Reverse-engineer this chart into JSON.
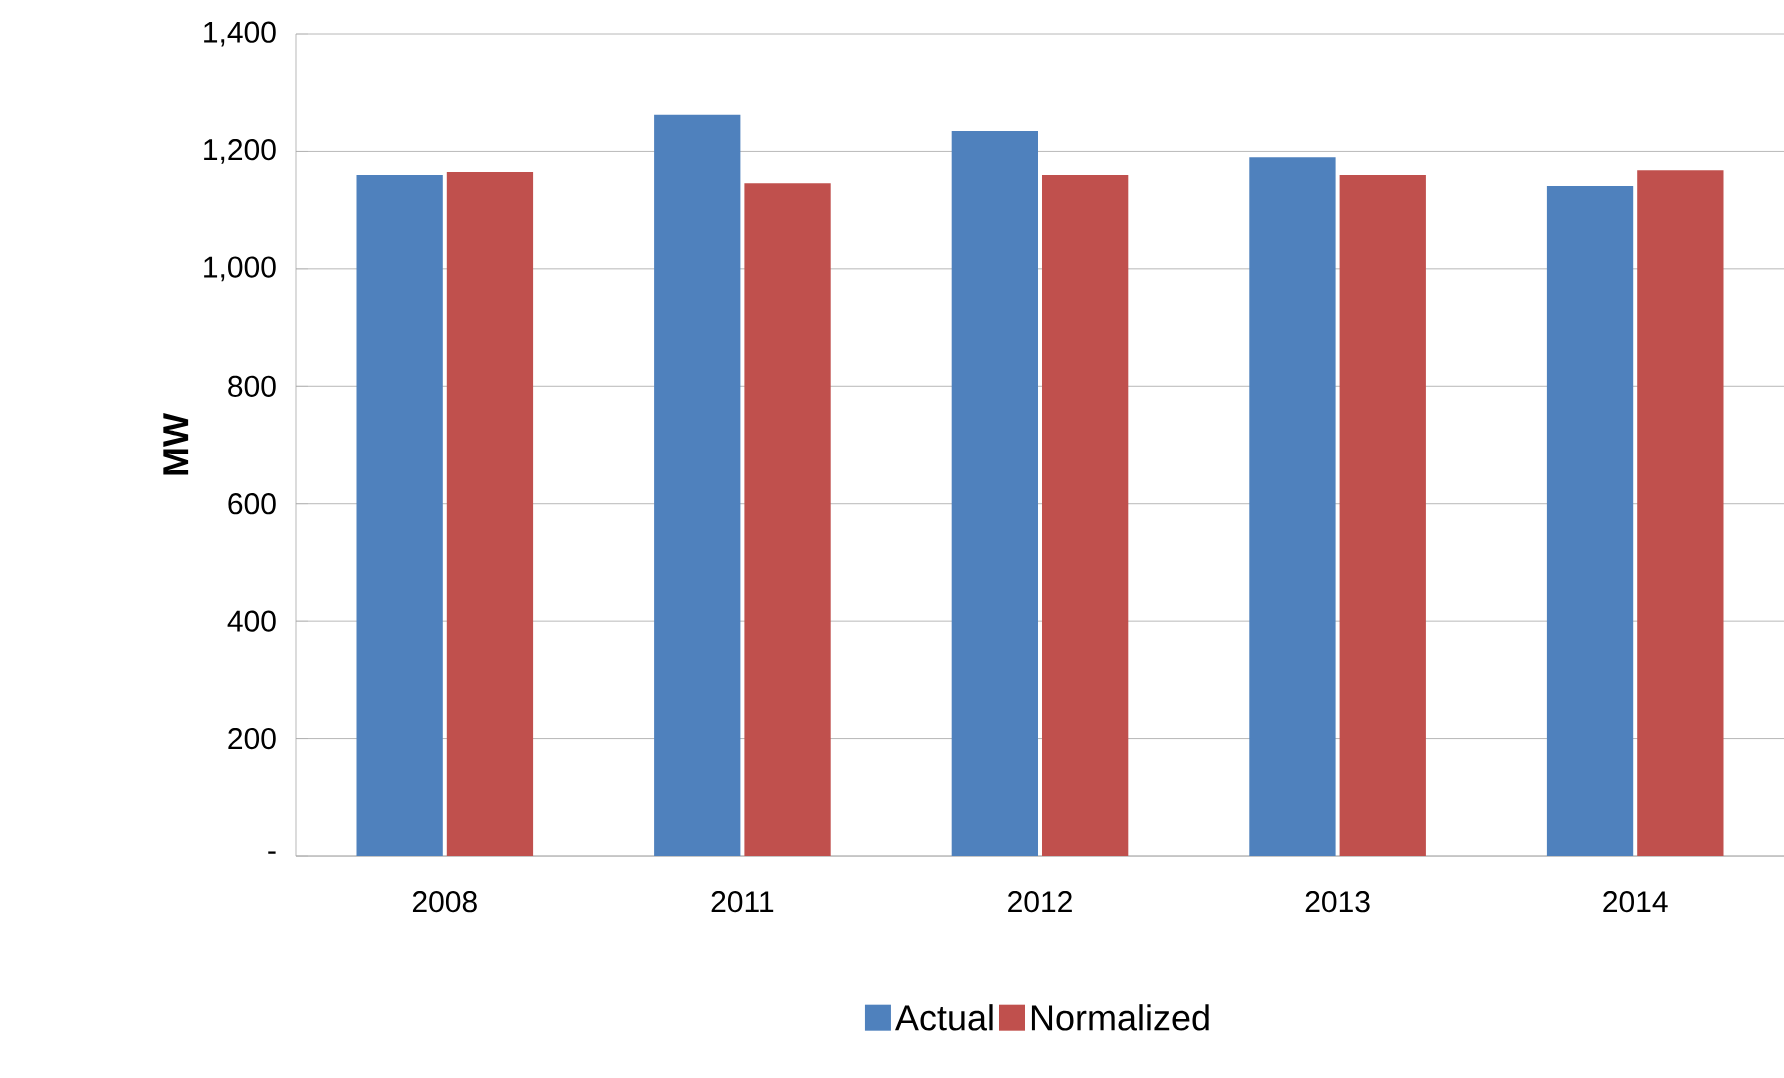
{
  "chart_data": {
    "type": "bar",
    "ylabel": "MW",
    "categories": [
      "2008",
      "2011",
      "2012",
      "2013",
      "2014"
    ],
    "series": [
      {
        "name": "Actual",
        "color": "#4f81bd",
        "values": [
          1160,
          1263,
          1235,
          1190,
          1141
        ]
      },
      {
        "name": "Normalized",
        "color": "#c0504d",
        "values": [
          1165,
          1146,
          1160,
          1160,
          1168
        ]
      }
    ],
    "ylim": [
      0,
      1400
    ],
    "yticks": [
      {
        "value": 0,
        "label": "-"
      },
      {
        "value": 200,
        "label": "200"
      },
      {
        "value": 400,
        "label": "400"
      },
      {
        "value": 600,
        "label": "600"
      },
      {
        "value": 800,
        "label": "800"
      },
      {
        "value": 1000,
        "label": "1,000"
      },
      {
        "value": 1200,
        "label": "1,200"
      },
      {
        "value": 1400,
        "label": "1,400"
      }
    ],
    "grid": "y",
    "legend": "bottom"
  }
}
